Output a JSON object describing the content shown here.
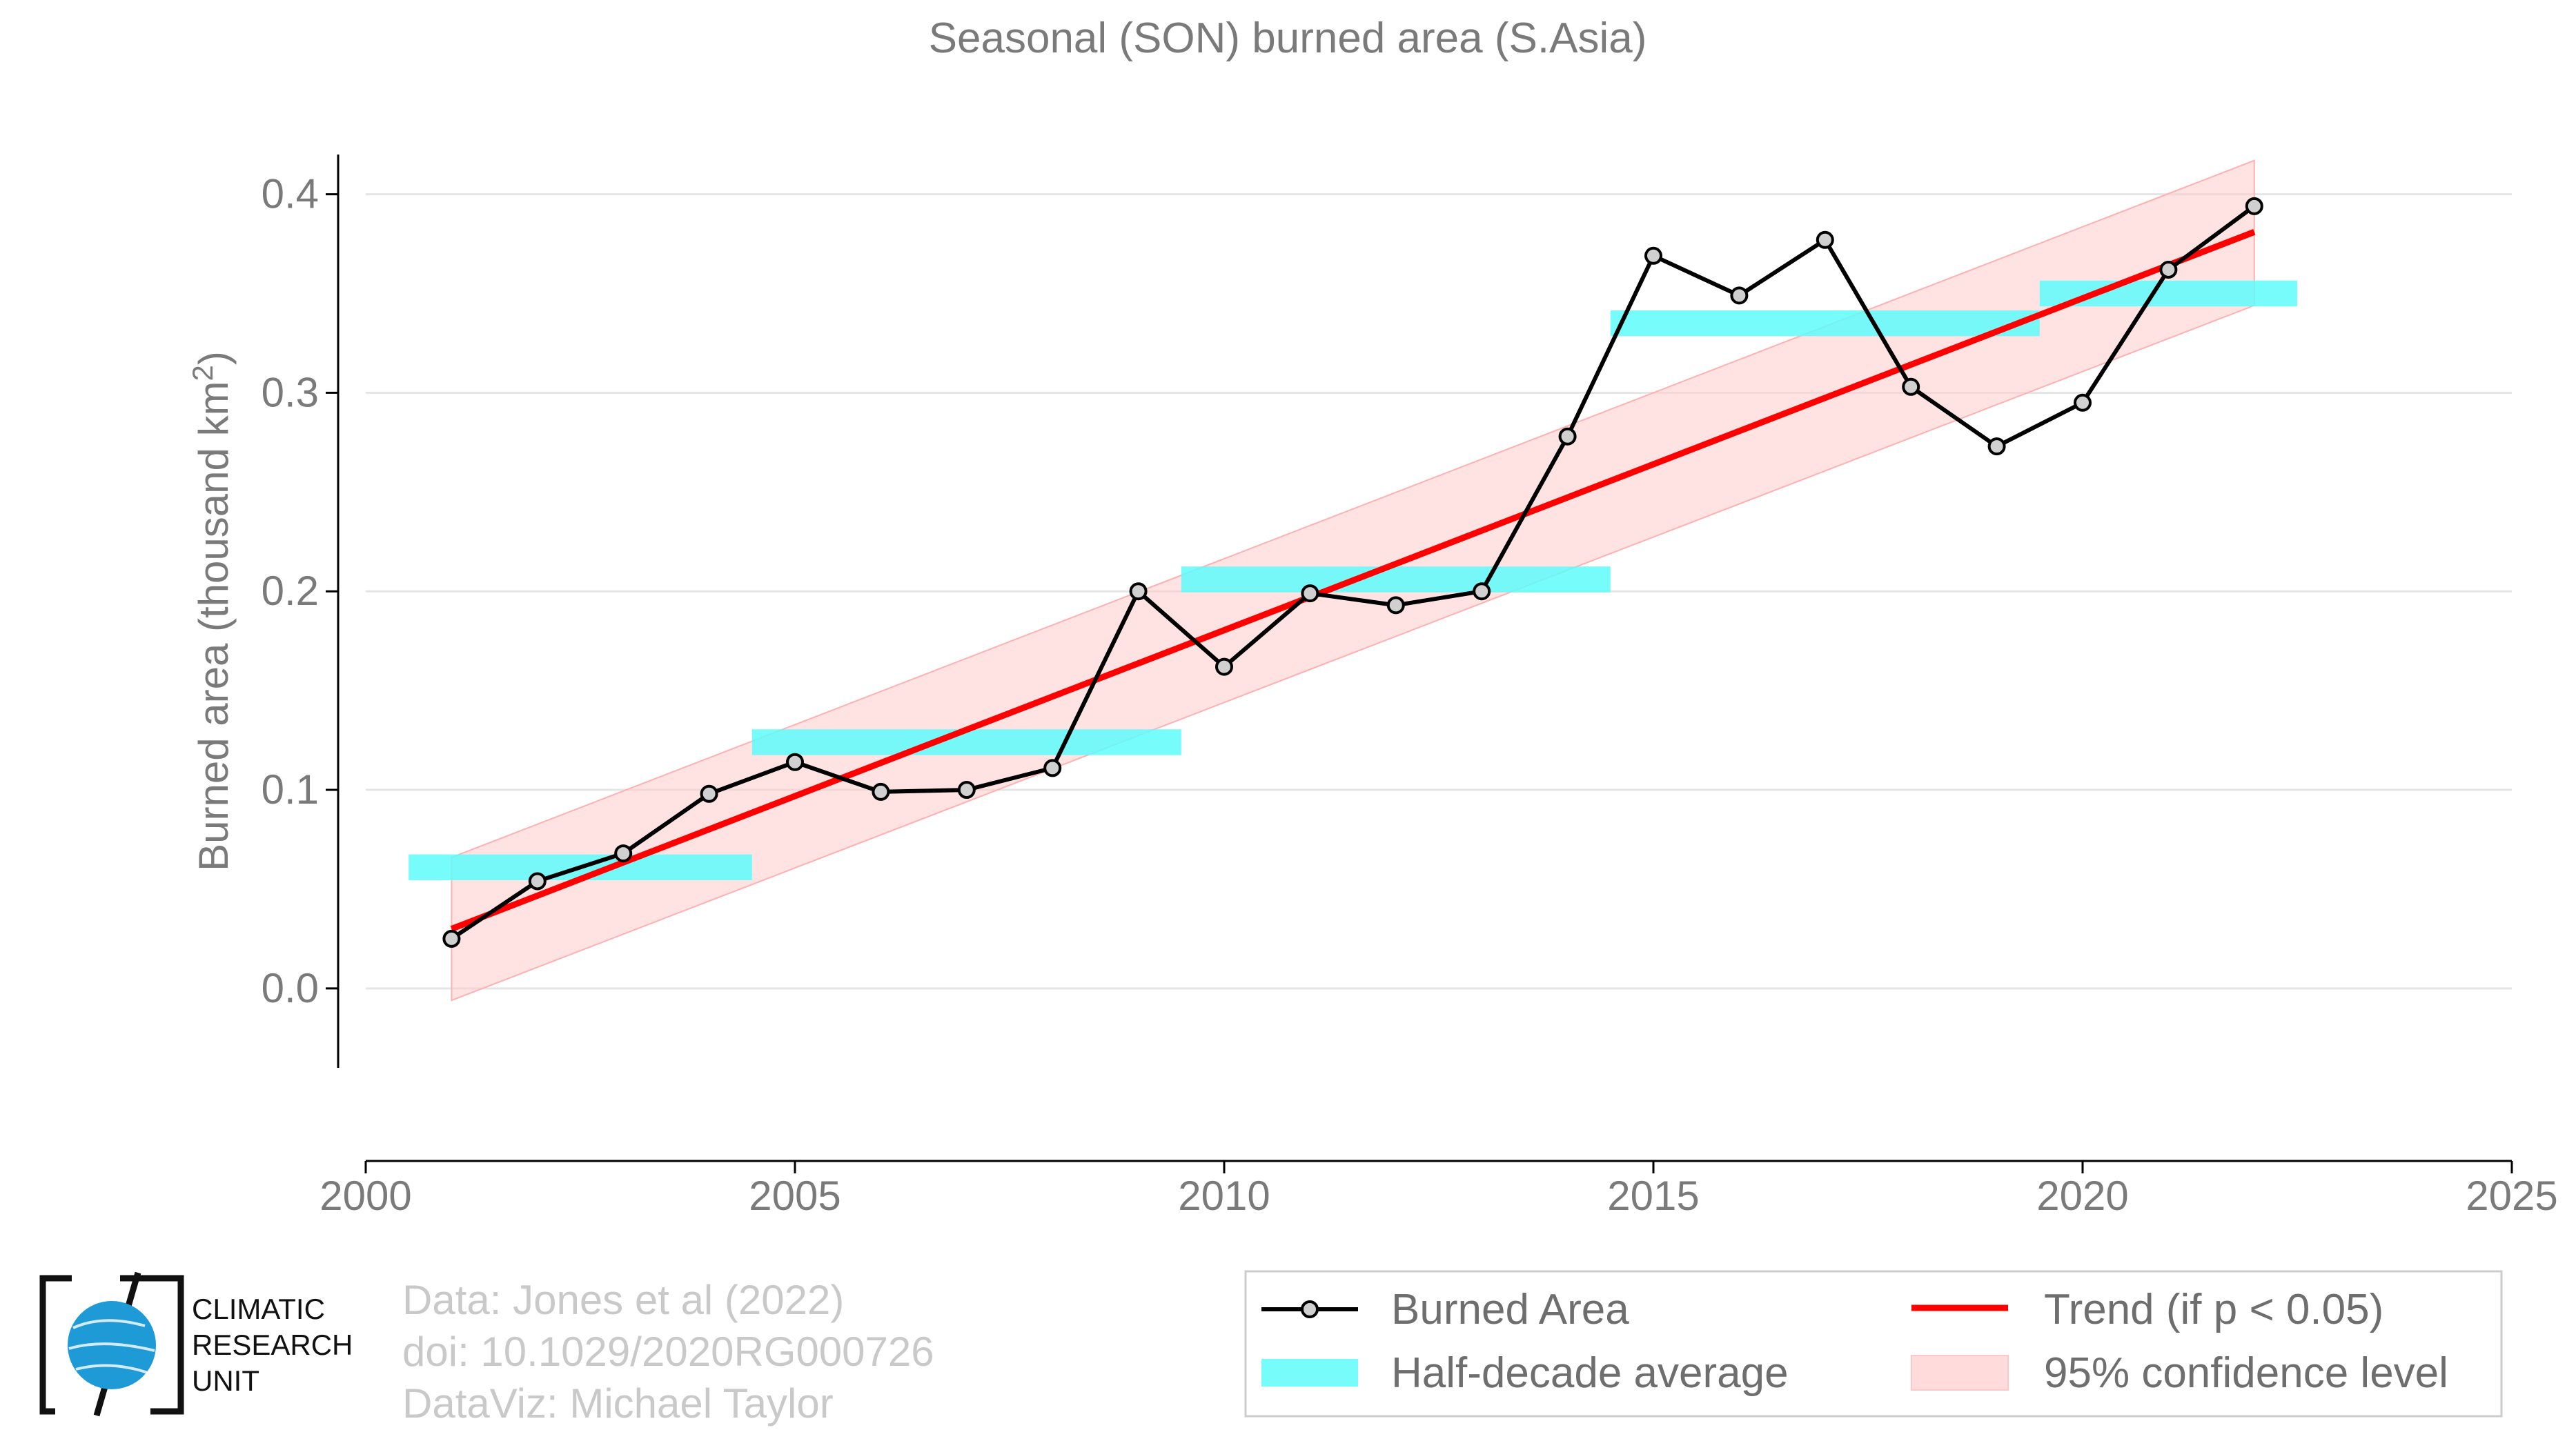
{
  "chart_data": {
    "type": "line",
    "title": "Seasonal (SON) burned area (S.Asia)",
    "xlabel": "",
    "ylabel_main": "Burned area (thousand km",
    "ylabel_sup": "2",
    "ylabel_close": ")",
    "xlim": [
      2000,
      2025
    ],
    "ylim": [
      -0.04,
      0.42
    ],
    "x_ticks": [
      2000,
      2005,
      2010,
      2015,
      2020,
      2025
    ],
    "y_ticks": [
      0.0,
      0.1,
      0.2,
      0.3,
      0.4
    ],
    "y_tick_labels": [
      "0.0",
      "0.1",
      "0.2",
      "0.3",
      "0.4"
    ],
    "grid": "horizontal",
    "legend_position": "bottom-right",
    "series": [
      {
        "name": "Burned Area",
        "color": "#000000",
        "marker_fill": "#d0d0d0",
        "x": [
          2001,
          2002,
          2003,
          2004,
          2005,
          2006,
          2007,
          2008,
          2009,
          2010,
          2011,
          2012,
          2013,
          2014,
          2015,
          2016,
          2017,
          2018,
          2019,
          2020,
          2021,
          2022
        ],
        "y": [
          0.025,
          0.054,
          0.068,
          0.098,
          0.114,
          0.099,
          0.1,
          0.111,
          0.2,
          0.162,
          0.199,
          0.193,
          0.2,
          0.278,
          0.369,
          0.349,
          0.377,
          0.303,
          0.273,
          0.295,
          0.362,
          0.394
        ]
      },
      {
        "name": "Half-decade average",
        "color": "#5ffbfb",
        "segments": [
          {
            "x0": 2000.5,
            "x1": 2004.5,
            "y": 0.061
          },
          {
            "x0": 2004.5,
            "x1": 2009.5,
            "y": 0.124
          },
          {
            "x0": 2009.5,
            "x1": 2014.5,
            "y": 0.206
          },
          {
            "x0": 2014.5,
            "x1": 2019.5,
            "y": 0.335
          },
          {
            "x0": 2019.5,
            "x1": 2022.5,
            "y": 0.35
          }
        ],
        "band_half_height": 0.0065
      },
      {
        "name": "Trend (if p < 0.05)",
        "color": "#ff0000",
        "x": [
          2001,
          2022
        ],
        "y": [
          0.03,
          0.381
        ]
      },
      {
        "name": "95% confidence level",
        "color": "#ffcccc",
        "x": [
          2001,
          2022
        ],
        "lower": [
          -0.006,
          0.344
        ],
        "upper": [
          0.066,
          0.417
        ]
      }
    ]
  },
  "credits": {
    "line1": "Data: Jones et al (2022)",
    "line2": "doi: 10.1029/2020RG000726",
    "line3": "DataViz: Michael Taylor"
  },
  "logo": {
    "line1": "CLIMATIC",
    "line2": "RESEARCH",
    "line3": "UNIT"
  }
}
